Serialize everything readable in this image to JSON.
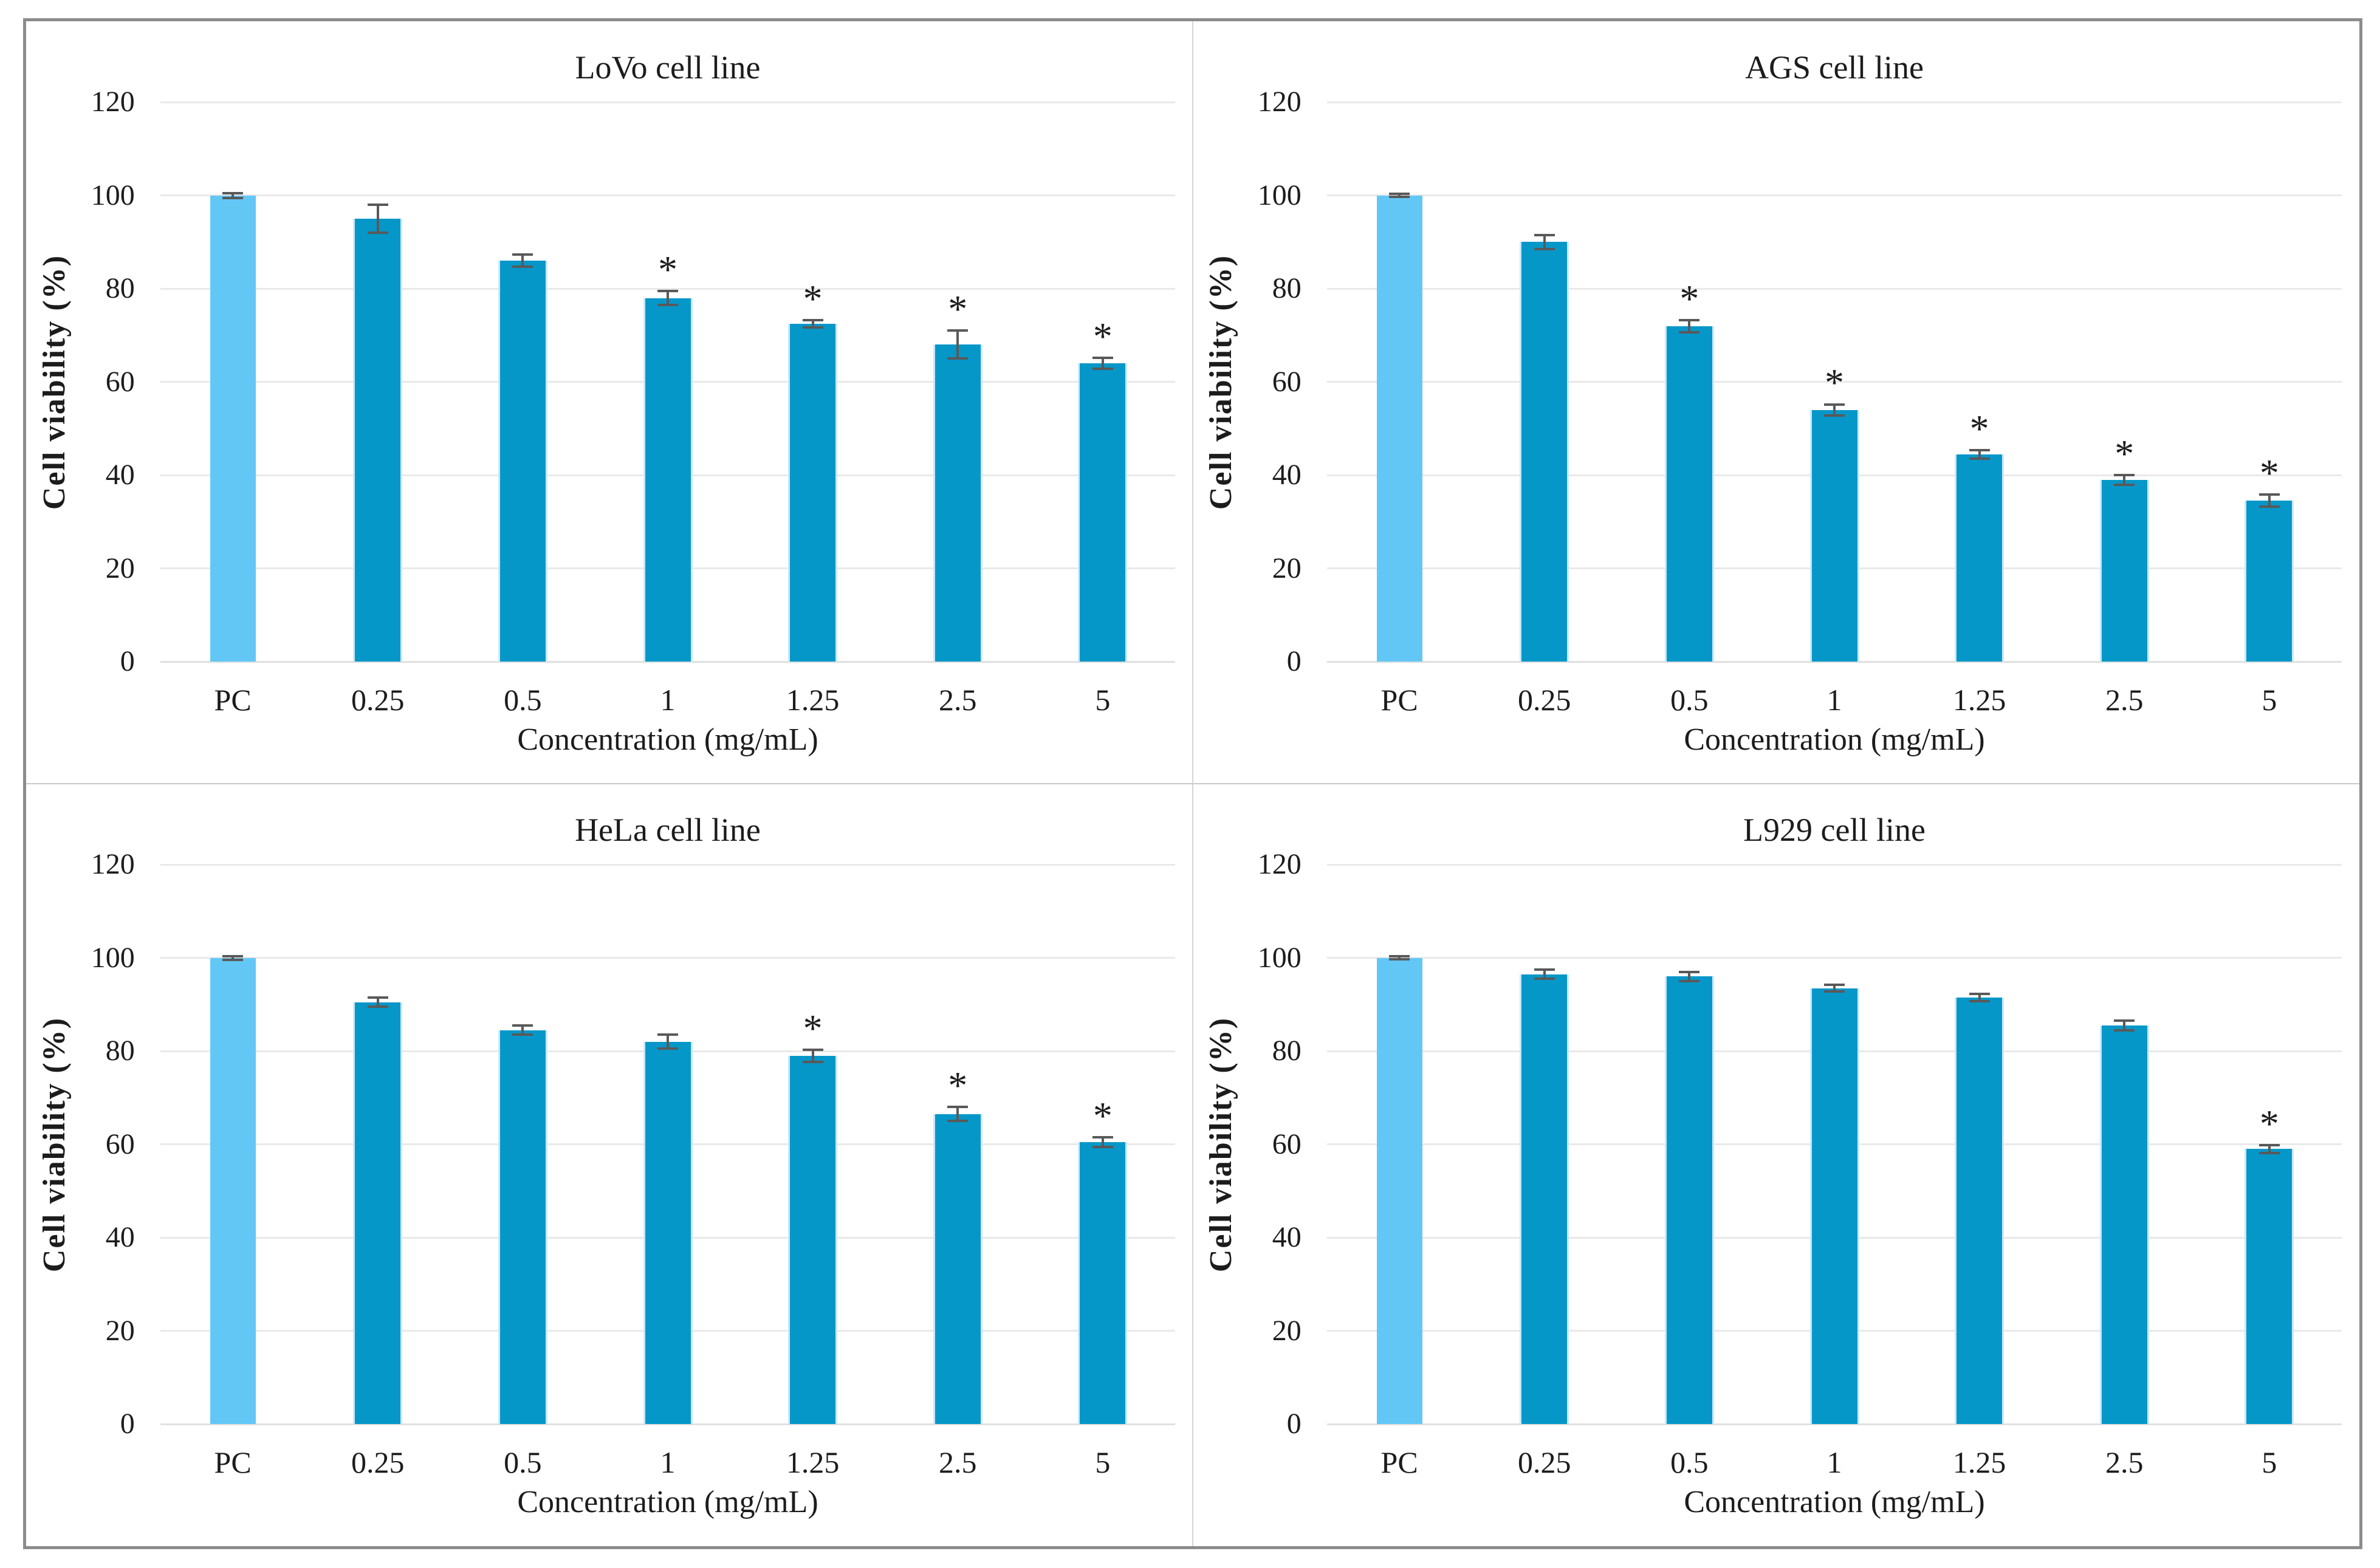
{
  "figure": {
    "background": "#FFFFFF",
    "outer_border_color": "#8C8C8C",
    "divider_color_vertical": "#D6D6D6",
    "divider_color_horizontal": "#C9C9C9",
    "text_color": "#1C1C1C"
  },
  "style": {
    "control_bar_color": "#63C7F6",
    "treatment_bar_color": "#0697C9",
    "bar_edge_highlight_color": "#CBE8F8",
    "error_bar_color": "#595959",
    "gridline_color": "#E9E9E9",
    "axis_line_color": "#E0E0E0",
    "significance_marker": "*",
    "control_category": "PC"
  },
  "chart_data": [
    {
      "type": "bar",
      "title": "LoVo cell line",
      "xlabel": "Concentration (mg/mL)",
      "ylabel": "Cell viability  (%)",
      "ylim": [
        0,
        120
      ],
      "yticks": [
        0,
        20,
        40,
        60,
        80,
        100,
        120
      ],
      "grid": true,
      "legend": "none",
      "categories": [
        "PC",
        "0.25",
        "0.5",
        "1",
        "1.25",
        "2.5",
        "5"
      ],
      "values": [
        100,
        95,
        86,
        78,
        72.5,
        68,
        64
      ],
      "errors": [
        0.5,
        3,
        1.3,
        1.5,
        0.8,
        3,
        1.2
      ],
      "significant": [
        false,
        false,
        false,
        true,
        true,
        true,
        true
      ]
    },
    {
      "type": "bar",
      "title": "AGS cell line",
      "xlabel": "Concentration (mg/mL)",
      "ylabel": "Cell viability  (%)",
      "ylim": [
        0,
        120
      ],
      "yticks": [
        0,
        20,
        40,
        60,
        80,
        100,
        120
      ],
      "grid": true,
      "legend": "none",
      "categories": [
        "PC",
        "0.25",
        "0.5",
        "1",
        "1.25",
        "2.5",
        "5"
      ],
      "values": [
        100,
        90,
        72,
        54,
        44.5,
        39,
        34.5
      ],
      "errors": [
        0.3,
        1.5,
        1.3,
        1.2,
        0.9,
        1,
        1.3
      ],
      "significant": [
        false,
        false,
        true,
        true,
        true,
        true,
        true
      ]
    },
    {
      "type": "bar",
      "title": "HeLa cell line",
      "xlabel": "Concentration (mg/mL)",
      "ylabel": "Cell viability  (%)",
      "ylim": [
        0,
        120
      ],
      "yticks": [
        0,
        20,
        40,
        60,
        80,
        100,
        120
      ],
      "grid": true,
      "legend": "none",
      "categories": [
        "PC",
        "0.25",
        "0.5",
        "1",
        "1.25",
        "2.5",
        "5"
      ],
      "values": [
        100,
        90.5,
        84.5,
        82,
        79,
        66.5,
        60.5
      ],
      "errors": [
        0.4,
        1,
        1,
        1.5,
        1.3,
        1.5,
        1
      ],
      "significant": [
        false,
        false,
        false,
        false,
        true,
        true,
        true
      ]
    },
    {
      "type": "bar",
      "title": "L929 cell line",
      "xlabel": "Concentration (mg/mL)",
      "ylabel": "Cell viability  (%)",
      "ylim": [
        0,
        120
      ],
      "yticks": [
        0,
        20,
        40,
        60,
        80,
        100,
        120
      ],
      "grid": true,
      "legend": "none",
      "categories": [
        "PC",
        "0.25",
        "0.5",
        "1",
        "1.25",
        "2.5",
        "5"
      ],
      "values": [
        100,
        96.5,
        96,
        93.5,
        91.5,
        85.5,
        59
      ],
      "errors": [
        0.3,
        1,
        1,
        0.7,
        0.8,
        1,
        0.8
      ],
      "significant": [
        false,
        false,
        false,
        false,
        false,
        false,
        true
      ]
    }
  ]
}
